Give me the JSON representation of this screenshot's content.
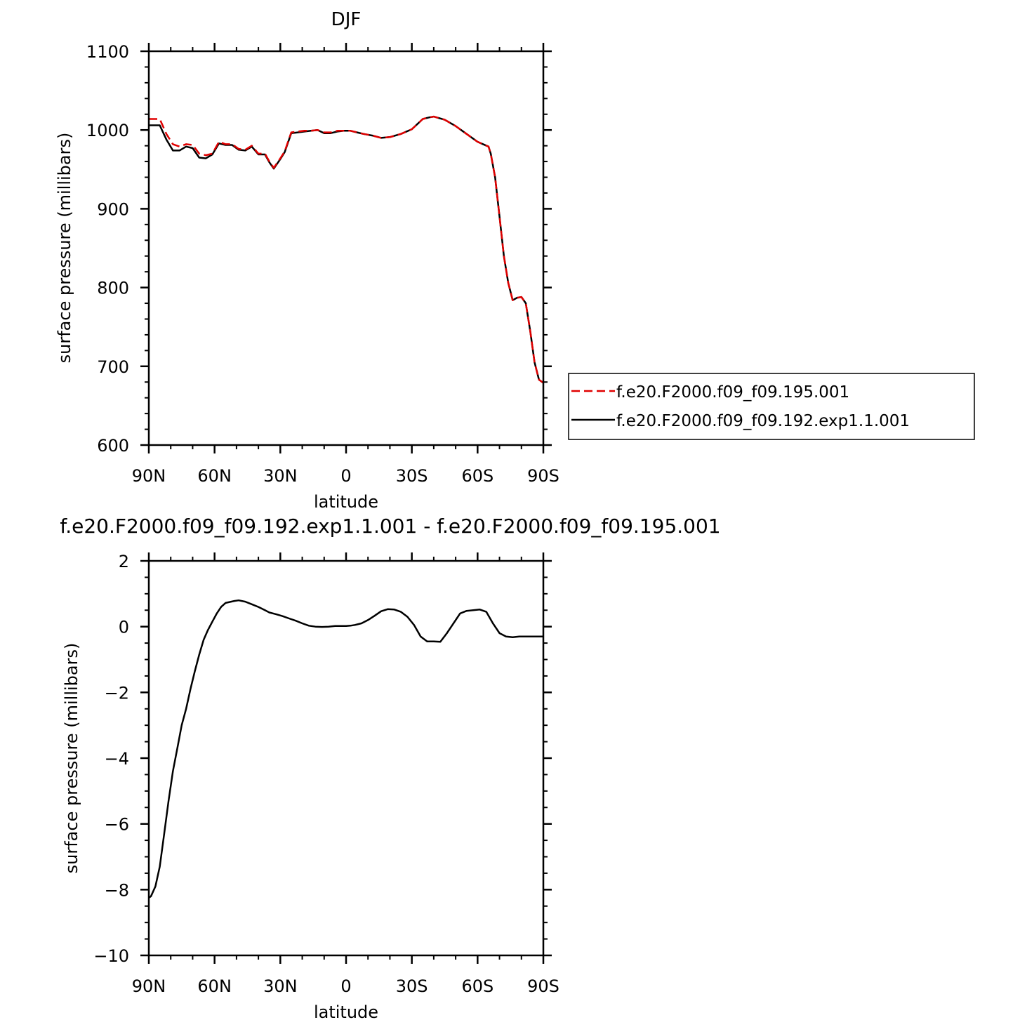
{
  "chart_data": [
    {
      "type": "line",
      "title": "DJF",
      "xlabel": "latitude",
      "ylabel": "surface pressure (millibars)",
      "xlim": [
        90,
        -90
      ],
      "ylim": [
        600,
        1100
      ],
      "x_ticks": [
        {
          "value": 90,
          "label": "90N"
        },
        {
          "value": 60,
          "label": "60N"
        },
        {
          "value": 30,
          "label": "30N"
        },
        {
          "value": 0,
          "label": "0"
        },
        {
          "value": -30,
          "label": "30S"
        },
        {
          "value": -60,
          "label": "60S"
        },
        {
          "value": -90,
          "label": "90S"
        }
      ],
      "y_ticks": [
        {
          "value": 600,
          "label": "600"
        },
        {
          "value": 700,
          "label": "700"
        },
        {
          "value": 800,
          "label": "800"
        },
        {
          "value": 900,
          "label": "900"
        },
        {
          "value": 1000,
          "label": "1000"
        },
        {
          "value": 1100,
          "label": "1100"
        }
      ],
      "legend_position": "right",
      "series": [
        {
          "name": "f.e20.F2000.f09_f09.195.001",
          "color": "#e00000",
          "dash": "dashed",
          "x": [
            90,
            85,
            82,
            79,
            76,
            73,
            70,
            67,
            64,
            61,
            58,
            55,
            52,
            49,
            46,
            43,
            40,
            37,
            35,
            33,
            30,
            28,
            25,
            22,
            19,
            16,
            13,
            10,
            7,
            4,
            1,
            -2,
            -5,
            -8,
            -12,
            -16,
            -20,
            -25,
            -30,
            -35,
            -38,
            -40,
            -45,
            -50,
            -55,
            -60,
            -65,
            -66,
            -68,
            -70,
            -72,
            -74,
            -76,
            -78,
            -80,
            -82,
            -84,
            -86,
            -88,
            -90
          ],
          "y": [
            1014,
            1014,
            995,
            982,
            979,
            982,
            981,
            970,
            968,
            970,
            985,
            982,
            982,
            976,
            975,
            980,
            970,
            970,
            960,
            952,
            964,
            973,
            997,
            998,
            999,
            999,
            1000,
            997,
            997,
            999,
            999,
            999,
            997,
            995,
            993,
            990,
            991,
            995,
            1001,
            1014,
            1016,
            1017,
            1013,
            1005,
            995,
            985,
            979,
            970,
            940,
            890,
            840,
            806,
            784,
            787,
            788,
            780,
            745,
            705,
            683,
            679
          ]
        },
        {
          "name": "f.e20.F2000.f09_f09.192.exp1.1.001",
          "color": "#000000",
          "dash": "solid",
          "x": [
            90,
            85,
            82,
            79,
            76,
            73,
            70,
            67,
            64,
            61,
            58,
            55,
            52,
            49,
            46,
            43,
            40,
            37,
            35,
            33,
            30,
            28,
            25,
            22,
            19,
            16,
            13,
            10,
            7,
            4,
            1,
            -2,
            -5,
            -8,
            -12,
            -16,
            -20,
            -25,
            -30,
            -35,
            -38,
            -40,
            -45,
            -50,
            -55,
            -60,
            -65,
            -66,
            -68,
            -70,
            -72,
            -74,
            -76,
            -78,
            -80,
            -82,
            -84,
            -86,
            -88,
            -90
          ],
          "y": [
            1006,
            1006,
            988,
            974,
            974,
            979,
            977,
            965,
            964,
            969,
            983,
            981,
            981,
            975,
            974,
            979,
            969,
            969,
            959,
            951,
            963,
            972,
            996,
            997,
            998,
            999,
            1000,
            996,
            996,
            998,
            999,
            999,
            997,
            995,
            993,
            990,
            991,
            995,
            1001,
            1014,
            1016,
            1017,
            1013,
            1005,
            995,
            985,
            979,
            970,
            940,
            890,
            840,
            806,
            784,
            787,
            788,
            780,
            745,
            705,
            683,
            679
          ]
        }
      ]
    },
    {
      "type": "line",
      "title": "f.e20.F2000.f09_f09.192.exp1.1.001 - f.e20.F2000.f09_f09.195.001",
      "xlabel": "latitude",
      "ylabel": "surface pressure (millibars)",
      "xlim": [
        90,
        -90
      ],
      "ylim": [
        -10,
        2
      ],
      "x_ticks": [
        {
          "value": 90,
          "label": "90N"
        },
        {
          "value": 60,
          "label": "60N"
        },
        {
          "value": 30,
          "label": "30N"
        },
        {
          "value": 0,
          "label": "0"
        },
        {
          "value": -30,
          "label": "30S"
        },
        {
          "value": -60,
          "label": "60S"
        },
        {
          "value": -90,
          "label": "90S"
        }
      ],
      "y_ticks": [
        {
          "value": -10,
          "label": "−10"
        },
        {
          "value": -8,
          "label": "−8"
        },
        {
          "value": -6,
          "label": "−6"
        },
        {
          "value": -4,
          "label": "−4"
        },
        {
          "value": -2,
          "label": "−2"
        },
        {
          "value": 0,
          "label": "0"
        },
        {
          "value": 2,
          "label": "2"
        }
      ],
      "series": [
        {
          "color": "#000000",
          "dash": "solid",
          "x": [
            90,
            89,
            87,
            85,
            83,
            81,
            79,
            77,
            75,
            73,
            71,
            69,
            67,
            65,
            63,
            61,
            59,
            57,
            55,
            53,
            51,
            49,
            46,
            43,
            40,
            37,
            35,
            32,
            29,
            26,
            23,
            20,
            17,
            14,
            11,
            8,
            5,
            2,
            0,
            -2,
            -4,
            -7,
            -10,
            -13,
            -16,
            -19,
            -22,
            -25,
            -28,
            -31,
            -34,
            -37,
            -40,
            -43,
            -46,
            -49,
            -52,
            -55,
            -58,
            -61,
            -64,
            -67,
            -70,
            -73,
            -76,
            -79,
            -81,
            -83,
            -85,
            -87,
            -89,
            -90
          ],
          "y": [
            -8.25,
            -8.2,
            -7.9,
            -7.3,
            -6.3,
            -5.3,
            -4.4,
            -3.7,
            -3.0,
            -2.5,
            -1.9,
            -1.35,
            -0.85,
            -0.4,
            -0.1,
            0.15,
            0.4,
            0.6,
            0.72,
            0.75,
            0.78,
            0.8,
            0.76,
            0.68,
            0.6,
            0.5,
            0.43,
            0.38,
            0.32,
            0.25,
            0.18,
            0.1,
            0.03,
            0.0,
            -0.01,
            0.0,
            0.02,
            0.02,
            0.02,
            0.03,
            0.05,
            0.1,
            0.2,
            0.33,
            0.47,
            0.53,
            0.52,
            0.45,
            0.3,
            0.05,
            -0.3,
            -0.45,
            -0.45,
            -0.46,
            -0.2,
            0.1,
            0.4,
            0.48,
            0.5,
            0.52,
            0.45,
            0.1,
            -0.2,
            -0.3,
            -0.32,
            -0.3,
            -0.3,
            -0.3,
            -0.3,
            -0.3,
            -0.3,
            -0.3
          ]
        }
      ]
    }
  ]
}
